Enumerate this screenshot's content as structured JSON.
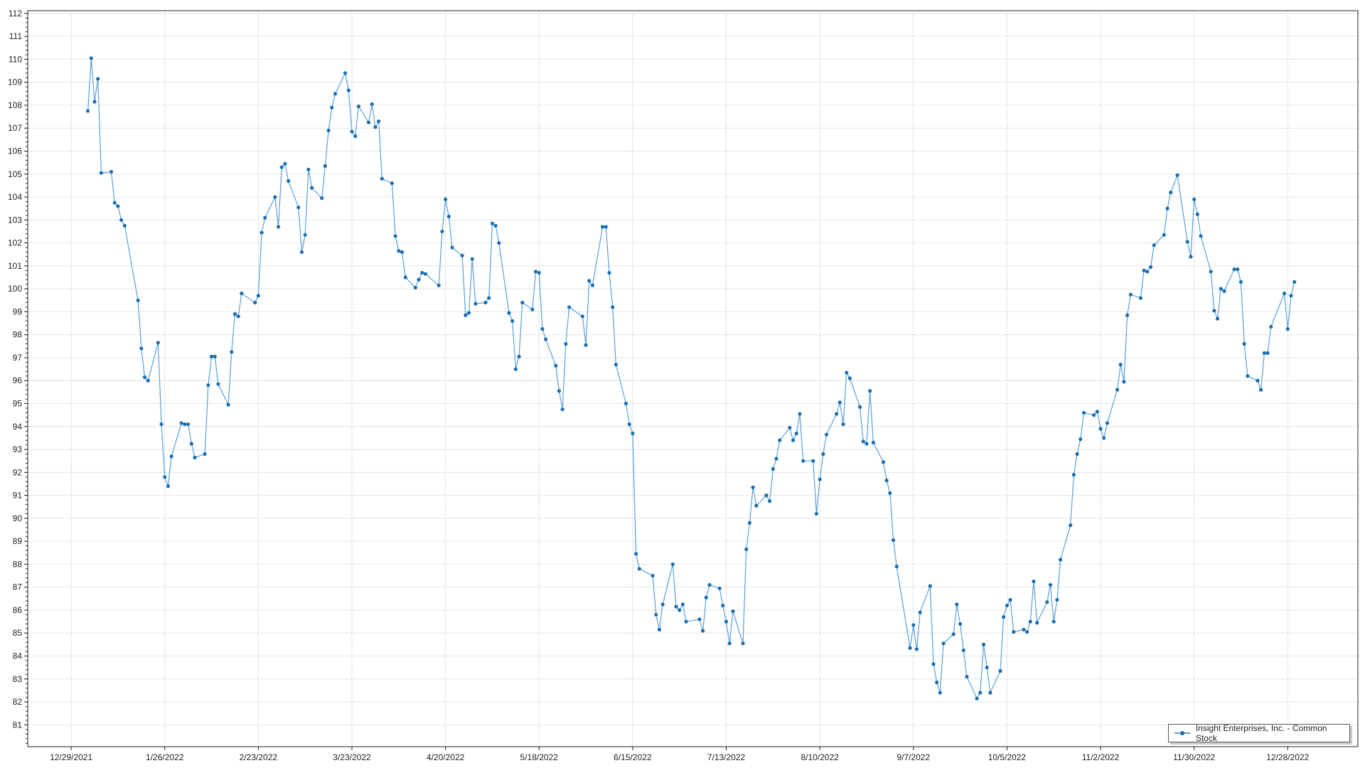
{
  "chart_data": {
    "type": "line",
    "title": "",
    "xlabel": "",
    "ylabel": "",
    "ylim": [
      80.05,
      112.12
    ],
    "xlim": [
      "2021-12-16",
      "2023-01-18"
    ],
    "grid": true,
    "legend_placement": "bottom-right",
    "x_ticks": [
      "12/29/2021",
      "1/26/2022",
      "2/23/2022",
      "3/23/2022",
      "4/20/2022",
      "5/18/2022",
      "6/15/2022",
      "7/13/2022",
      "8/10/2022",
      "9/7/2022",
      "10/5/2022",
      "11/2/2022",
      "11/30/2022",
      "12/28/2022"
    ],
    "y_ticks": [
      81,
      82,
      83,
      84,
      85,
      86,
      87,
      88,
      89,
      90,
      91,
      92,
      93,
      94,
      95,
      96,
      97,
      98,
      99,
      100,
      101,
      102,
      103,
      104,
      105,
      106,
      107,
      108,
      109,
      110,
      111,
      112
    ],
    "colors": {
      "line": "#5a9fd6",
      "marker": "#1a6fb0",
      "grid": "#e4e4e4"
    },
    "series": [
      {
        "name": "Insight Enterprises, Inc. - Common Stock",
        "points": [
          [
            "2022-01-03",
            107.75
          ],
          [
            "2022-01-04",
            110.05
          ],
          [
            "2022-01-05",
            108.15
          ],
          [
            "2022-01-06",
            109.15
          ],
          [
            "2022-01-07",
            105.05
          ],
          [
            "2022-01-10",
            105.1
          ],
          [
            "2022-01-11",
            103.75
          ],
          [
            "2022-01-12",
            103.6
          ],
          [
            "2022-01-13",
            103.0
          ],
          [
            "2022-01-14",
            102.75
          ],
          [
            "2022-01-18",
            99.5
          ],
          [
            "2022-01-19",
            97.4
          ],
          [
            "2022-01-20",
            96.15
          ],
          [
            "2022-01-21",
            96.0
          ],
          [
            "2022-01-24",
            97.65
          ],
          [
            "2022-01-25",
            94.1
          ],
          [
            "2022-01-26",
            91.8
          ],
          [
            "2022-01-27",
            91.4
          ],
          [
            "2022-01-28",
            92.7
          ],
          [
            "2022-01-31",
            94.15
          ],
          [
            "2022-02-01",
            94.1
          ],
          [
            "2022-02-02",
            94.1
          ],
          [
            "2022-02-03",
            93.25
          ],
          [
            "2022-02-04",
            92.65
          ],
          [
            "2022-02-07",
            92.8
          ],
          [
            "2022-02-08",
            95.8
          ],
          [
            "2022-02-09",
            97.05
          ],
          [
            "2022-02-10",
            97.05
          ],
          [
            "2022-02-11",
            95.85
          ],
          [
            "2022-02-14",
            94.95
          ],
          [
            "2022-02-15",
            97.25
          ],
          [
            "2022-02-16",
            98.9
          ],
          [
            "2022-02-17",
            98.8
          ],
          [
            "2022-02-18",
            99.8
          ],
          [
            "2022-02-22",
            99.4
          ],
          [
            "2022-02-23",
            99.7
          ],
          [
            "2022-02-24",
            102.45
          ],
          [
            "2022-02-25",
            103.1
          ],
          [
            "2022-02-28",
            104.0
          ],
          [
            "2022-03-01",
            102.7
          ],
          [
            "2022-03-02",
            105.3
          ],
          [
            "2022-03-03",
            105.45
          ],
          [
            "2022-03-04",
            104.7
          ],
          [
            "2022-03-07",
            103.55
          ],
          [
            "2022-03-08",
            101.6
          ],
          [
            "2022-03-09",
            102.35
          ],
          [
            "2022-03-10",
            105.2
          ],
          [
            "2022-03-11",
            104.4
          ],
          [
            "2022-03-14",
            103.95
          ],
          [
            "2022-03-15",
            105.35
          ],
          [
            "2022-03-16",
            106.9
          ],
          [
            "2022-03-17",
            107.9
          ],
          [
            "2022-03-18",
            108.5
          ],
          [
            "2022-03-21",
            109.4
          ],
          [
            "2022-03-22",
            108.65
          ],
          [
            "2022-03-23",
            106.85
          ],
          [
            "2022-03-24",
            106.65
          ],
          [
            "2022-03-25",
            107.95
          ],
          [
            "2022-03-28",
            107.25
          ],
          [
            "2022-03-29",
            108.05
          ],
          [
            "2022-03-30",
            107.05
          ],
          [
            "2022-03-31",
            107.3
          ],
          [
            "2022-04-01",
            104.8
          ],
          [
            "2022-04-04",
            104.6
          ],
          [
            "2022-04-05",
            102.3
          ],
          [
            "2022-04-06",
            101.65
          ],
          [
            "2022-04-07",
            101.6
          ],
          [
            "2022-04-08",
            100.5
          ],
          [
            "2022-04-11",
            100.05
          ],
          [
            "2022-04-12",
            100.4
          ],
          [
            "2022-04-13",
            100.7
          ],
          [
            "2022-04-14",
            100.65
          ],
          [
            "2022-04-18",
            100.15
          ],
          [
            "2022-04-19",
            102.5
          ],
          [
            "2022-04-20",
            103.9
          ],
          [
            "2022-04-21",
            103.15
          ],
          [
            "2022-04-22",
            101.8
          ],
          [
            "2022-04-25",
            101.45
          ],
          [
            "2022-04-26",
            98.85
          ],
          [
            "2022-04-27",
            98.95
          ],
          [
            "2022-04-28",
            101.3
          ],
          [
            "2022-04-29",
            99.35
          ],
          [
            "2022-05-02",
            99.4
          ],
          [
            "2022-05-03",
            99.6
          ],
          [
            "2022-05-04",
            102.85
          ],
          [
            "2022-05-05",
            102.75
          ],
          [
            "2022-05-06",
            102.0
          ],
          [
            "2022-05-09",
            98.95
          ],
          [
            "2022-05-10",
            98.6
          ],
          [
            "2022-05-11",
            96.5
          ],
          [
            "2022-05-12",
            97.05
          ],
          [
            "2022-05-13",
            99.4
          ],
          [
            "2022-05-16",
            99.1
          ],
          [
            "2022-05-17",
            100.75
          ],
          [
            "2022-05-18",
            100.7
          ],
          [
            "2022-05-19",
            98.25
          ],
          [
            "2022-05-20",
            97.8
          ],
          [
            "2022-05-23",
            96.65
          ],
          [
            "2022-05-24",
            95.55
          ],
          [
            "2022-05-25",
            94.75
          ],
          [
            "2022-05-26",
            97.6
          ],
          [
            "2022-05-27",
            99.2
          ],
          [
            "2022-05-31",
            98.8
          ],
          [
            "2022-06-01",
            97.55
          ],
          [
            "2022-06-02",
            100.35
          ],
          [
            "2022-06-03",
            100.15
          ],
          [
            "2022-06-06",
            102.7
          ],
          [
            "2022-06-07",
            102.7
          ],
          [
            "2022-06-08",
            100.7
          ],
          [
            "2022-06-09",
            99.2
          ],
          [
            "2022-06-10",
            96.7
          ],
          [
            "2022-06-13",
            95.0
          ],
          [
            "2022-06-14",
            94.1
          ],
          [
            "2022-06-15",
            93.7
          ],
          [
            "2022-06-16",
            88.45
          ],
          [
            "2022-06-17",
            87.8
          ],
          [
            "2022-06-21",
            87.5
          ],
          [
            "2022-06-22",
            85.8
          ],
          [
            "2022-06-23",
            85.15
          ],
          [
            "2022-06-24",
            86.25
          ],
          [
            "2022-06-27",
            88.0
          ],
          [
            "2022-06-28",
            86.15
          ],
          [
            "2022-06-29",
            86.0
          ],
          [
            "2022-06-30",
            86.25
          ],
          [
            "2022-07-01",
            85.5
          ],
          [
            "2022-07-05",
            85.6
          ],
          [
            "2022-07-06",
            85.1
          ],
          [
            "2022-07-07",
            86.55
          ],
          [
            "2022-07-08",
            87.1
          ],
          [
            "2022-07-11",
            86.95
          ],
          [
            "2022-07-12",
            86.2
          ],
          [
            "2022-07-13",
            85.5
          ],
          [
            "2022-07-14",
            84.55
          ],
          [
            "2022-07-15",
            85.95
          ],
          [
            "2022-07-18",
            84.55
          ],
          [
            "2022-07-19",
            88.65
          ],
          [
            "2022-07-20",
            89.8
          ],
          [
            "2022-07-21",
            91.35
          ],
          [
            "2022-07-22",
            90.55
          ],
          [
            "2022-07-25",
            91.0
          ],
          [
            "2022-07-26",
            90.75
          ],
          [
            "2022-07-27",
            92.15
          ],
          [
            "2022-07-28",
            92.6
          ],
          [
            "2022-07-29",
            93.4
          ],
          [
            "2022-08-01",
            93.95
          ],
          [
            "2022-08-02",
            93.4
          ],
          [
            "2022-08-03",
            93.7
          ],
          [
            "2022-08-04",
            94.55
          ],
          [
            "2022-08-05",
            92.5
          ],
          [
            "2022-08-08",
            92.5
          ],
          [
            "2022-08-09",
            90.2
          ],
          [
            "2022-08-10",
            91.7
          ],
          [
            "2022-08-11",
            92.8
          ],
          [
            "2022-08-12",
            93.65
          ],
          [
            "2022-08-15",
            94.55
          ],
          [
            "2022-08-16",
            95.05
          ],
          [
            "2022-08-17",
            94.1
          ],
          [
            "2022-08-18",
            96.35
          ],
          [
            "2022-08-19",
            96.1
          ],
          [
            "2022-08-22",
            94.85
          ],
          [
            "2022-08-23",
            93.35
          ],
          [
            "2022-08-24",
            93.25
          ],
          [
            "2022-08-25",
            95.55
          ],
          [
            "2022-08-26",
            93.3
          ],
          [
            "2022-08-29",
            92.45
          ],
          [
            "2022-08-30",
            91.65
          ],
          [
            "2022-08-31",
            91.1
          ],
          [
            "2022-09-01",
            89.05
          ],
          [
            "2022-09-02",
            87.9
          ],
          [
            "2022-09-06",
            84.35
          ],
          [
            "2022-09-07",
            85.35
          ],
          [
            "2022-09-08",
            84.3
          ],
          [
            "2022-09-09",
            85.9
          ],
          [
            "2022-09-12",
            87.05
          ],
          [
            "2022-09-13",
            83.65
          ],
          [
            "2022-09-14",
            82.85
          ],
          [
            "2022-09-15",
            82.4
          ],
          [
            "2022-09-16",
            84.55
          ],
          [
            "2022-09-19",
            84.95
          ],
          [
            "2022-09-20",
            86.25
          ],
          [
            "2022-09-21",
            85.4
          ],
          [
            "2022-09-22",
            84.25
          ],
          [
            "2022-09-23",
            83.1
          ],
          [
            "2022-09-26",
            82.15
          ],
          [
            "2022-09-27",
            82.4
          ],
          [
            "2022-09-28",
            84.5
          ],
          [
            "2022-09-29",
            83.5
          ],
          [
            "2022-09-30",
            82.4
          ],
          [
            "2022-10-03",
            83.35
          ],
          [
            "2022-10-04",
            85.7
          ],
          [
            "2022-10-05",
            86.2
          ],
          [
            "2022-10-06",
            86.45
          ],
          [
            "2022-10-07",
            85.05
          ],
          [
            "2022-10-10",
            85.15
          ],
          [
            "2022-10-11",
            85.05
          ],
          [
            "2022-10-12",
            85.5
          ],
          [
            "2022-10-13",
            87.25
          ],
          [
            "2022-10-14",
            85.45
          ],
          [
            "2022-10-17",
            86.35
          ],
          [
            "2022-10-18",
            87.1
          ],
          [
            "2022-10-19",
            85.5
          ],
          [
            "2022-10-20",
            86.45
          ],
          [
            "2022-10-21",
            88.2
          ],
          [
            "2022-10-24",
            89.7
          ],
          [
            "2022-10-25",
            91.9
          ],
          [
            "2022-10-26",
            92.8
          ],
          [
            "2022-10-27",
            93.45
          ],
          [
            "2022-10-28",
            94.6
          ],
          [
            "2022-10-31",
            94.5
          ],
          [
            "2022-11-01",
            94.65
          ],
          [
            "2022-11-02",
            93.9
          ],
          [
            "2022-11-03",
            93.5
          ],
          [
            "2022-11-04",
            94.15
          ],
          [
            "2022-11-07",
            95.6
          ],
          [
            "2022-11-08",
            96.7
          ],
          [
            "2022-11-09",
            95.95
          ],
          [
            "2022-11-10",
            98.85
          ],
          [
            "2022-11-11",
            99.75
          ],
          [
            "2022-11-14",
            99.6
          ],
          [
            "2022-11-15",
            100.8
          ],
          [
            "2022-11-16",
            100.75
          ],
          [
            "2022-11-17",
            100.95
          ],
          [
            "2022-11-18",
            101.9
          ],
          [
            "2022-11-21",
            102.35
          ],
          [
            "2022-11-22",
            103.5
          ],
          [
            "2022-11-23",
            104.2
          ],
          [
            "2022-11-25",
            104.95
          ],
          [
            "2022-11-28",
            102.05
          ],
          [
            "2022-11-29",
            101.4
          ],
          [
            "2022-11-30",
            103.9
          ],
          [
            "2022-12-01",
            103.25
          ],
          [
            "2022-12-02",
            102.3
          ],
          [
            "2022-12-05",
            100.75
          ],
          [
            "2022-12-06",
            99.05
          ],
          [
            "2022-12-07",
            98.7
          ],
          [
            "2022-12-08",
            100.0
          ],
          [
            "2022-12-09",
            99.9
          ],
          [
            "2022-12-12",
            100.85
          ],
          [
            "2022-12-13",
            100.85
          ],
          [
            "2022-12-14",
            100.3
          ],
          [
            "2022-12-15",
            97.6
          ],
          [
            "2022-12-16",
            96.2
          ],
          [
            "2022-12-19",
            96.0
          ],
          [
            "2022-12-20",
            95.6
          ],
          [
            "2022-12-21",
            97.2
          ],
          [
            "2022-12-22",
            97.2
          ],
          [
            "2022-12-23",
            98.35
          ],
          [
            "2022-12-27",
            99.8
          ],
          [
            "2022-12-28",
            98.25
          ],
          [
            "2022-12-29",
            99.7
          ],
          [
            "2022-12-30",
            100.3
          ]
        ]
      }
    ]
  }
}
